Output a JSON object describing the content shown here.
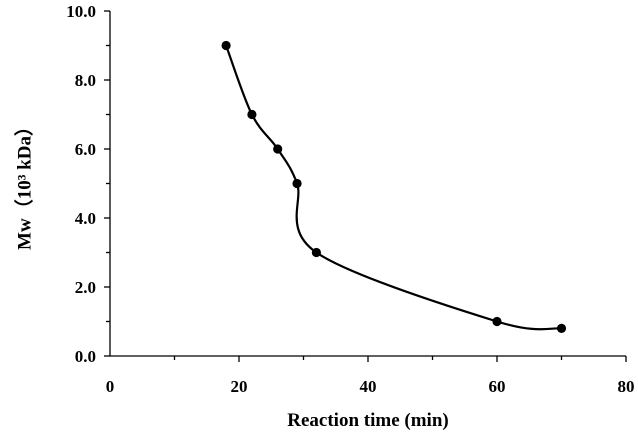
{
  "chart_data": {
    "type": "line",
    "smooth": true,
    "xlabel": "Reaction time (min)",
    "ylabel": "Mw（10³ kDa）",
    "xlim": [
      0,
      80
    ],
    "ylim": [
      0.0,
      10.0
    ],
    "xticks": [
      0,
      20,
      40,
      60,
      80
    ],
    "xtick_labels": [
      "0",
      "20",
      "40",
      "60",
      "80"
    ],
    "yticks": [
      0.0,
      2.0,
      4.0,
      6.0,
      8.0,
      10.0
    ],
    "ytick_labels": [
      "0.0",
      "2.0",
      "4.0",
      "6.0",
      "8.0",
      "10.0"
    ],
    "grid": false,
    "legend": "none",
    "series": [
      {
        "color": "#000000",
        "marker": "circle",
        "x": [
          18,
          22,
          26,
          29,
          32,
          60,
          70
        ],
        "y": [
          9.0,
          7.0,
          6.0,
          5.0,
          3.0,
          1.0,
          0.8
        ]
      }
    ]
  }
}
